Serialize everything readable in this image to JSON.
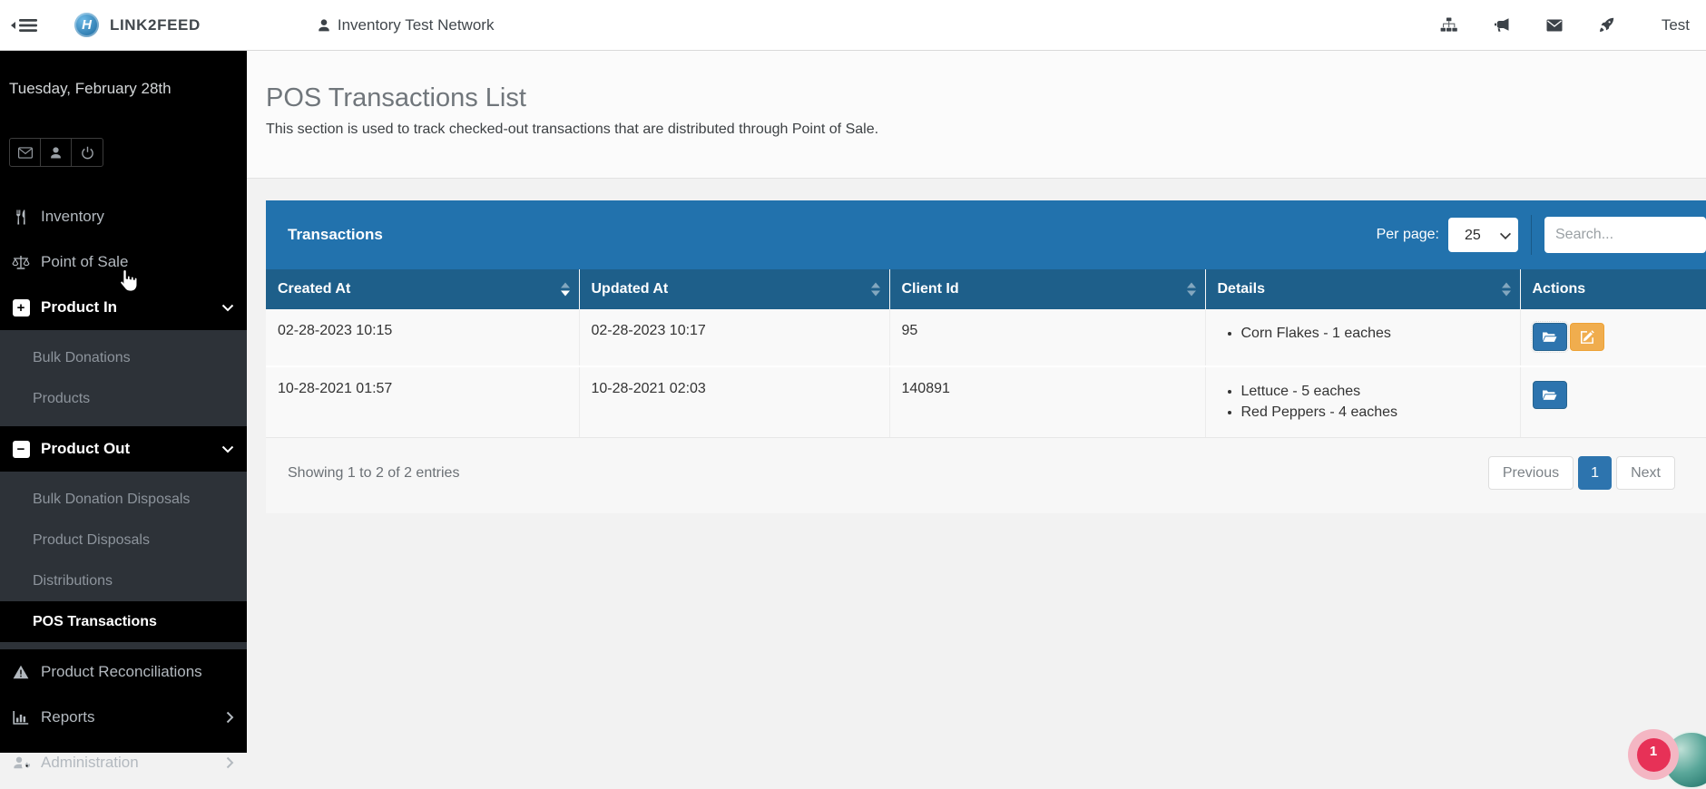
{
  "topbar": {
    "brand": "LINK2FEED",
    "network": "Inventory Test Network",
    "user": "Test"
  },
  "sidebar": {
    "date": "Tuesday, February 28th",
    "menu": {
      "inventory": "Inventory",
      "point_of_sale": "Point of Sale",
      "product_in": "Product In",
      "bulk_donations": "Bulk Donations",
      "products": "Products",
      "product_out": "Product Out",
      "bulk_donation_disposals": "Bulk Donation Disposals",
      "product_disposals": "Product Disposals",
      "distributions": "Distributions",
      "pos_transactions": "POS Transactions",
      "product_reconciliations": "Product Reconciliations",
      "reports": "Reports",
      "administration": "Administration"
    }
  },
  "page": {
    "title": "POS Transactions List",
    "description": "This section is used to track checked-out transactions that are distributed through Point of Sale."
  },
  "panel": {
    "title": "Transactions",
    "per_page_label": "Per page:",
    "per_page_value": "25",
    "search_placeholder": "Search...",
    "table": {
      "columns": [
        {
          "label": "Created At",
          "sortable": true,
          "sort": "desc"
        },
        {
          "label": "Updated At",
          "sortable": true,
          "sort": null
        },
        {
          "label": "Client Id",
          "sortable": true,
          "sort": null
        },
        {
          "label": "Details",
          "sortable": true,
          "sort": null
        },
        {
          "label": "Actions",
          "sortable": false,
          "sort": null
        }
      ],
      "rows": [
        {
          "created_at": "02-28-2023 10:15",
          "updated_at": "02-28-2023 10:17",
          "client_id": "95",
          "details": [
            "Corn Flakes - 1 eaches"
          ],
          "actions": [
            {
              "icon": "folder-open",
              "focused": true
            },
            {
              "icon": "edit",
              "focused": false
            }
          ]
        },
        {
          "created_at": "10-28-2021 01:57",
          "updated_at": "10-28-2021 02:03",
          "client_id": "140891",
          "details": [
            "Lettuce - 5 eaches",
            "Red Peppers - 4 eaches"
          ],
          "actions": [
            {
              "icon": "folder-open",
              "focused": false
            }
          ]
        }
      ]
    },
    "footer": {
      "showing": "Showing 1 to 2 of 2 entries",
      "previous": "Previous",
      "page": "1",
      "next": "Next"
    }
  },
  "widgets": {
    "notification_count": "1"
  },
  "colors": {
    "panel_header": "#2272ad",
    "table_header": "#1e5f8a",
    "primary": "#2d74ae",
    "warning": "#f0ad4e",
    "notification": "#e73157",
    "sidebar_bg": "#000000",
    "submenu_bg": "#2d3238"
  }
}
